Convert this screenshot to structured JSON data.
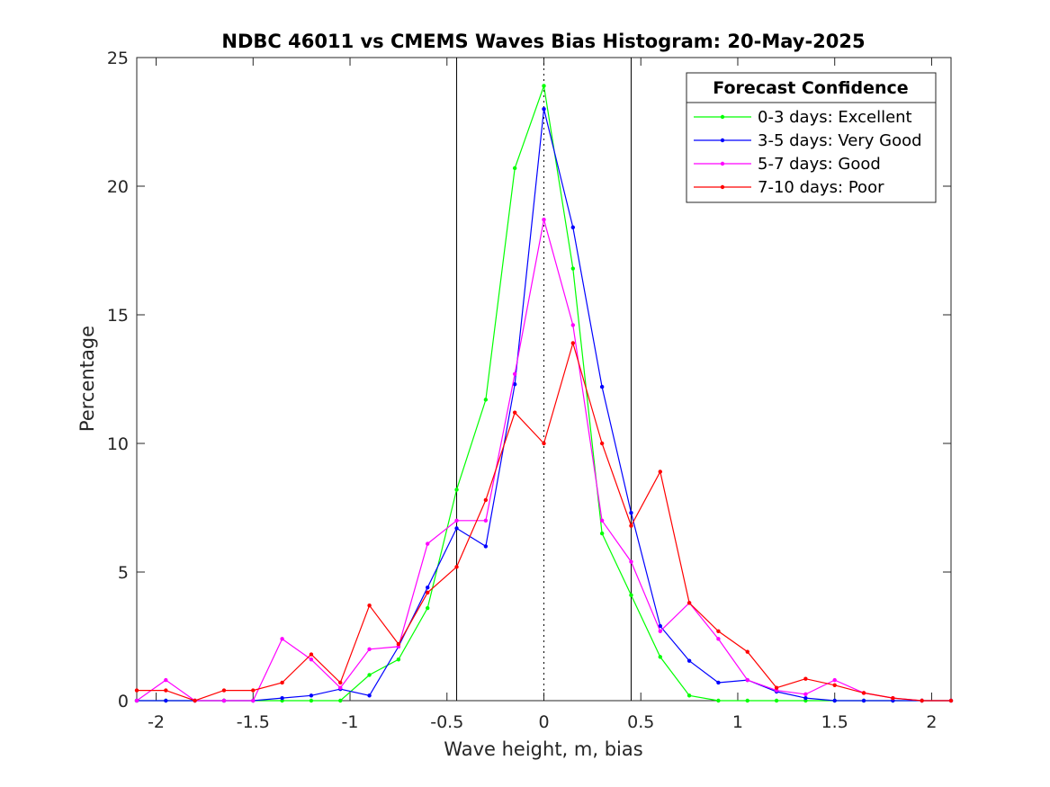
{
  "chart_data": {
    "type": "line",
    "title": "NDBC 46011 vs CMEMS Waves Bias Histogram: 20-May-2025",
    "xlabel": "Wave height, m, bias",
    "ylabel": "Percentage",
    "xlim": [
      -2.1,
      2.1
    ],
    "ylim": [
      0,
      25
    ],
    "xticks": [
      -2,
      -1.5,
      -1,
      -0.5,
      0,
      0.5,
      1,
      1.5,
      2
    ],
    "xtick_labels": [
      "-2",
      "-1.5",
      "-1",
      "-0.5",
      "0",
      "0.5",
      "1",
      "1.5",
      "2"
    ],
    "yticks": [
      0,
      5,
      10,
      15,
      20,
      25
    ],
    "ytick_labels": [
      "0",
      "5",
      "10",
      "15",
      "20",
      "25"
    ],
    "grid": false,
    "reference_lines": {
      "solid": [
        -0.45,
        0.45
      ],
      "dotted": [
        0
      ]
    },
    "legend": {
      "title": "Forecast Confidence",
      "location": "top-right"
    },
    "x": [
      -2.1,
      -1.95,
      -1.8,
      -1.65,
      -1.5,
      -1.35,
      -1.2,
      -1.05,
      -0.9,
      -0.75,
      -0.6,
      -0.45,
      -0.3,
      -0.15,
      0,
      0.15,
      0.3,
      0.45,
      0.6,
      0.75,
      0.9,
      1.05,
      1.2,
      1.35,
      1.5,
      1.65,
      1.8,
      1.95,
      2.1
    ],
    "series": [
      {
        "name": "0-3 days: Excellent",
        "color": "#00ff00",
        "values": [
          0,
          0,
          0,
          0,
          0,
          0,
          0,
          0,
          1.0,
          1.6,
          3.6,
          8.2,
          11.7,
          20.7,
          23.9,
          16.8,
          6.5,
          4.1,
          1.7,
          0.2,
          0,
          0,
          0,
          0,
          0,
          0,
          0,
          0,
          0
        ]
      },
      {
        "name": "3-5 days: Very Good",
        "color": "#0000ff",
        "values": [
          0,
          0,
          0,
          0,
          0,
          0.1,
          0.2,
          0.45,
          0.2,
          2.1,
          4.4,
          6.7,
          6.0,
          12.3,
          23.0,
          18.4,
          12.2,
          7.3,
          2.9,
          1.55,
          0.7,
          0.8,
          0.35,
          0.1,
          0,
          0,
          0,
          0,
          0
        ]
      },
      {
        "name": "5-7 days: Good",
        "color": "#ff00ff",
        "values": [
          0,
          0.8,
          0,
          0,
          0,
          2.4,
          1.6,
          0.5,
          2.0,
          2.1,
          6.1,
          7.0,
          7.0,
          12.7,
          18.7,
          14.6,
          7.0,
          5.4,
          2.7,
          3.8,
          2.4,
          0.8,
          0.4,
          0.25,
          0.8,
          0.3,
          0.1,
          0,
          0
        ]
      },
      {
        "name": "7-10 days: Poor",
        "color": "#ff0000",
        "values": [
          0.4,
          0.4,
          0,
          0.4,
          0.4,
          0.7,
          1.8,
          0.7,
          3.7,
          2.2,
          4.2,
          5.2,
          7.8,
          11.2,
          10.0,
          13.9,
          10.0,
          6.8,
          8.9,
          3.8,
          2.7,
          1.9,
          0.5,
          0.85,
          0.6,
          0.3,
          0.1,
          0,
          0
        ]
      }
    ]
  }
}
